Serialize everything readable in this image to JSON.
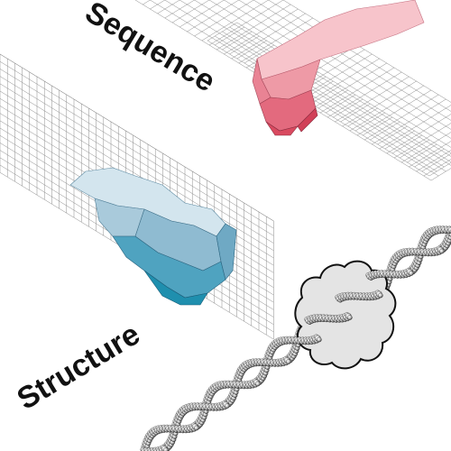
{
  "labels": {
    "sequence": "Sequence",
    "structure": "Structure"
  },
  "colors": {
    "background": "#ffffff",
    "grid_line": "#8a8a8a",
    "sequence_light": "#f4b6bf",
    "sequence_mid": "#ec8f9c",
    "sequence_dark": "#d94a60",
    "structure_light": "#c7dde8",
    "structure_mid": "#8fbbd1",
    "structure_dark": "#1f8fae",
    "protein_fill": "#e4e4e4",
    "protein_outline": "#111111",
    "dna_atoms": "#cfcfcf"
  },
  "icons": {
    "sequence_grid": "isometric-grid-with-depression",
    "structure_grid": "isometric-grid-with-depression",
    "molecule": "protein-bound-to-dna-helix"
  }
}
